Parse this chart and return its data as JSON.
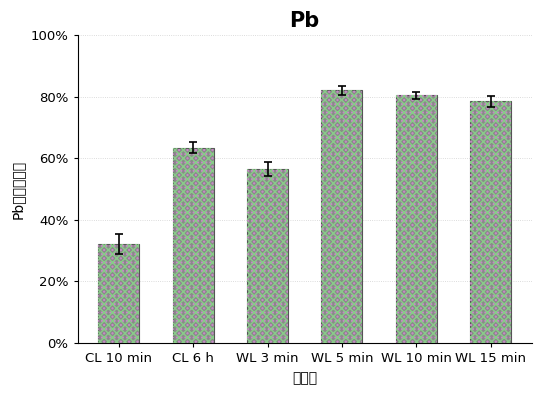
{
  "title": "Pb",
  "xlabel": "处理组",
  "ylabel": "Pb淋洗去除率",
  "categories": [
    "CL 10 min",
    "CL 6 h",
    "WL 3 min",
    "WL 5 min",
    "WL 10 min",
    "WL 15 min"
  ],
  "values": [
    0.32,
    0.635,
    0.565,
    0.822,
    0.805,
    0.785
  ],
  "errors": [
    0.033,
    0.018,
    0.022,
    0.015,
    0.012,
    0.018
  ],
  "bar_face_color": "#8a8a8a",
  "bar_edge_color": "#555555",
  "ylim": [
    0,
    1.0
  ],
  "yticks": [
    0.0,
    0.2,
    0.4,
    0.6,
    0.8,
    1.0
  ],
  "ytick_labels": [
    "0%",
    "20%",
    "40%",
    "60%",
    "80%",
    "100%"
  ],
  "background_color": "#ffffff",
  "title_fontsize": 15,
  "label_fontsize": 10,
  "tick_fontsize": 9.5,
  "bar_width": 0.55,
  "error_capsize": 3,
  "error_color": "black",
  "error_linewidth": 1.2,
  "grid_color": "#cccccc",
  "grid_linestyle": ":",
  "purple_color": "#cc88cc",
  "green_color": "#88cc88"
}
